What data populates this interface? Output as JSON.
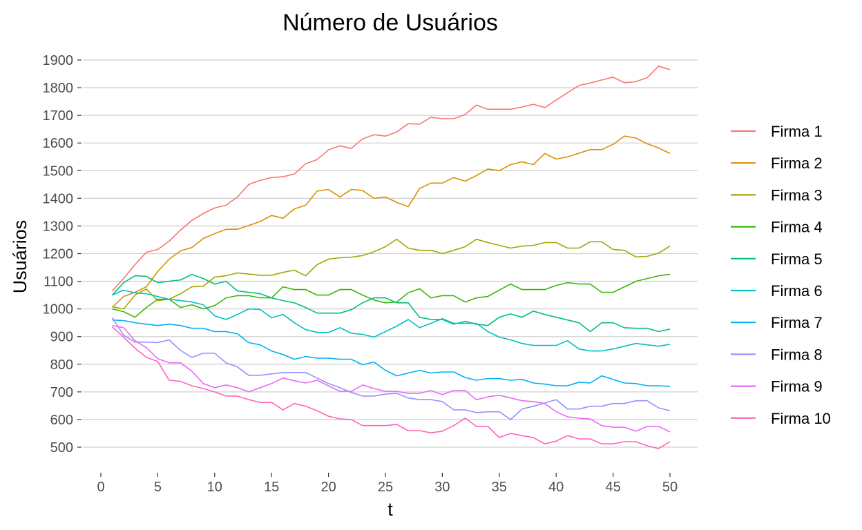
{
  "chart_data": {
    "type": "line",
    "title": "Número de Usuários",
    "xlabel": "t",
    "ylabel": "Usuários",
    "xlim": [
      0,
      50
    ],
    "ylim": [
      450,
      1920
    ],
    "x_ticks": [
      0,
      5,
      10,
      15,
      20,
      25,
      30,
      35,
      40,
      45,
      50
    ],
    "y_ticks": [
      500,
      600,
      700,
      800,
      900,
      1000,
      1100,
      1200,
      1300,
      1400,
      1500,
      1600,
      1700,
      1800,
      1900
    ],
    "grid": "horizontal",
    "legend_position": "right",
    "x": [
      1,
      2,
      3,
      4,
      5,
      6,
      7,
      8,
      9,
      10,
      11,
      12,
      13,
      14,
      15,
      16,
      17,
      18,
      19,
      20,
      21,
      22,
      23,
      24,
      25,
      26,
      27,
      28,
      29,
      30,
      31,
      32,
      33,
      34,
      35,
      36,
      37,
      38,
      39,
      40,
      41,
      42,
      43,
      44,
      45,
      46,
      47,
      48,
      49,
      50
    ],
    "series": [
      {
        "name": "Firma 1",
        "color": "#F8766D",
        "values": [
          1065,
          1110,
          1160,
          1205,
          1215,
          1245,
          1285,
          1320,
          1345,
          1365,
          1375,
          1405,
          1450,
          1465,
          1475,
          1478,
          1488,
          1525,
          1540,
          1575,
          1590,
          1580,
          1615,
          1630,
          1625,
          1640,
          1670,
          1668,
          1693,
          1688,
          1688,
          1703,
          1737,
          1722,
          1722,
          1722,
          1730,
          1740,
          1728,
          1755,
          1782,
          1808,
          1817,
          1828,
          1838,
          1818,
          1822,
          1836,
          1878,
          1865
        ]
      },
      {
        "name": "Firma 2",
        "color": "#D89000",
        "values": [
          1005,
          1045,
          1060,
          1080,
          1135,
          1180,
          1210,
          1222,
          1255,
          1272,
          1288,
          1288,
          1302,
          1316,
          1338,
          1328,
          1362,
          1375,
          1426,
          1432,
          1405,
          1432,
          1428,
          1400,
          1405,
          1385,
          1370,
          1435,
          1455,
          1455,
          1475,
          1462,
          1482,
          1506,
          1500,
          1522,
          1532,
          1522,
          1562,
          1542,
          1550,
          1563,
          1576,
          1576,
          1595,
          1625,
          1618,
          1597,
          1582,
          1562
        ]
      },
      {
        "name": "Firma 3",
        "color": "#A3A500",
        "values": [
          1008,
          1000,
          1050,
          1072,
          1030,
          1035,
          1055,
          1080,
          1082,
          1115,
          1120,
          1130,
          1126,
          1122,
          1122,
          1132,
          1140,
          1120,
          1160,
          1180,
          1185,
          1187,
          1193,
          1207,
          1225,
          1252,
          1220,
          1212,
          1212,
          1200,
          1212,
          1225,
          1252,
          1240,
          1230,
          1220,
          1227,
          1230,
          1240,
          1240,
          1220,
          1220,
          1243,
          1243,
          1215,
          1212,
          1188,
          1190,
          1202,
          1227
        ]
      },
      {
        "name": "Firma 4",
        "color": "#39B600",
        "values": [
          1000,
          990,
          970,
          1005,
          1035,
          1035,
          1005,
          1015,
          1000,
          1012,
          1040,
          1048,
          1048,
          1040,
          1040,
          1080,
          1070,
          1070,
          1050,
          1050,
          1070,
          1070,
          1050,
          1032,
          1022,
          1025,
          1058,
          1073,
          1040,
          1048,
          1048,
          1025,
          1040,
          1045,
          1068,
          1090,
          1070,
          1070,
          1070,
          1085,
          1095,
          1090,
          1090,
          1060,
          1060,
          1080,
          1100,
          1110,
          1120,
          1125
        ]
      },
      {
        "name": "Firma 5",
        "color": "#00BF7D",
        "values": [
          1050,
          1095,
          1120,
          1118,
          1095,
          1100,
          1105,
          1125,
          1110,
          1090,
          1100,
          1065,
          1060,
          1055,
          1040,
          1030,
          1022,
          1005,
          985,
          985,
          985,
          997,
          1022,
          1040,
          1040,
          1022,
          1022,
          970,
          962,
          962,
          945,
          955,
          945,
          940,
          970,
          982,
          970,
          992,
          980,
          970,
          960,
          950,
          918,
          950,
          950,
          932,
          930,
          930,
          918,
          927
        ]
      },
      {
        "name": "Firma 6",
        "color": "#00BFC4",
        "values": [
          1050,
          1068,
          1058,
          1055,
          1045,
          1035,
          1030,
          1025,
          1015,
          975,
          962,
          980,
          1000,
          998,
          968,
          980,
          950,
          925,
          915,
          915,
          932,
          912,
          908,
          898,
          918,
          938,
          962,
          932,
          948,
          965,
          948,
          948,
          948,
          918,
          898,
          888,
          875,
          868,
          868,
          868,
          885,
          855,
          848,
          848,
          855,
          865,
          875,
          870,
          865,
          872
        ]
      },
      {
        "name": "Firma 7",
        "color": "#00B0F6",
        "values": [
          960,
          958,
          950,
          945,
          940,
          945,
          940,
          930,
          930,
          918,
          918,
          910,
          878,
          870,
          848,
          835,
          818,
          828,
          822,
          822,
          818,
          818,
          798,
          808,
          778,
          758,
          768,
          778,
          768,
          772,
          772,
          752,
          742,
          748,
          748,
          742,
          745,
          732,
          728,
          722,
          722,
          735,
          732,
          758,
          745,
          732,
          730,
          722,
          722,
          720
        ]
      },
      {
        "name": "Firma 8",
        "color": "#9590FF",
        "values": [
          968,
          905,
          880,
          880,
          878,
          888,
          850,
          825,
          840,
          840,
          805,
          790,
          760,
          760,
          765,
          770,
          770,
          770,
          750,
          730,
          715,
          698,
          685,
          685,
          692,
          695,
          678,
          672,
          672,
          665,
          635,
          635,
          625,
          628,
          628,
          600,
          638,
          648,
          660,
          672,
          638,
          638,
          648,
          648,
          658,
          658,
          668,
          668,
          642,
          632
        ]
      },
      {
        "name": "Firma 9",
        "color": "#E76BF3",
        "values": [
          940,
          932,
          885,
          860,
          820,
          805,
          805,
          775,
          730,
          715,
          725,
          715,
          700,
          715,
          730,
          750,
          740,
          732,
          742,
          722,
          702,
          702,
          725,
          712,
          702,
          702,
          695,
          695,
          705,
          690,
          705,
          705,
          672,
          682,
          688,
          678,
          668,
          665,
          658,
          628,
          610,
          605,
          602,
          578,
          572,
          572,
          558,
          575,
          575,
          555
        ]
      },
      {
        "name": "Firma 10",
        "color": "#FF62BC",
        "values": [
          935,
          898,
          858,
          825,
          810,
          742,
          738,
          722,
          712,
          700,
          685,
          685,
          672,
          662,
          662,
          635,
          658,
          648,
          632,
          612,
          602,
          600,
          578,
          578,
          578,
          582,
          560,
          560,
          552,
          558,
          578,
          605,
          575,
          575,
          535,
          550,
          542,
          535,
          512,
          522,
          542,
          530,
          530,
          512,
          512,
          520,
          520,
          505,
          495,
          520
        ]
      }
    ]
  }
}
